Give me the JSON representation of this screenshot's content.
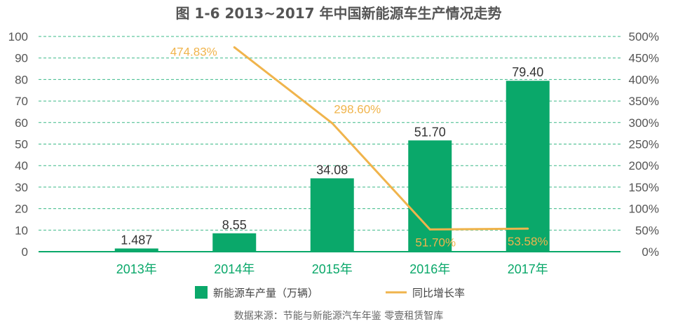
{
  "chart_data": {
    "type": "bar",
    "title": "图 1-6  2013~2017 年中国新能源车生产情况走势",
    "categories": [
      "2013年",
      "2014年",
      "2015年",
      "2016年",
      "2017年"
    ],
    "series": [
      {
        "name": "新能源车产量（万辆）",
        "type": "bar",
        "axis": "left",
        "values": [
          1.487,
          8.55,
          34.08,
          51.7,
          79.4
        ],
        "labels": [
          "1.487",
          "8.55",
          "34.08",
          "51.70",
          "79.40"
        ],
        "color": "#0aa86a"
      },
      {
        "name": "同比增长率",
        "type": "line",
        "axis": "right",
        "values": [
          null,
          474.83,
          298.6,
          51.7,
          53.58
        ],
        "labels": [
          "",
          "474.83%",
          "298.60%",
          "51.70%",
          "53.58%"
        ],
        "color": "#f0b44c"
      }
    ],
    "y_left": {
      "ylim": [
        0,
        100
      ],
      "ticks": [
        "0",
        "10",
        "20",
        "30",
        "40",
        "50",
        "60",
        "70",
        "80",
        "90",
        "100"
      ]
    },
    "y_right": {
      "ylim": [
        0,
        500
      ],
      "ticks": [
        "0%",
        "50%",
        "100%",
        "150%",
        "200%",
        "250%",
        "300%",
        "350%",
        "400%",
        "450%",
        "500%"
      ]
    },
    "grid": true,
    "gridline_style": "dashed",
    "legend_position": "bottom"
  },
  "footer": {
    "source": "数据来源：节能与新能源汽车年鉴   零壹租赁智库"
  }
}
